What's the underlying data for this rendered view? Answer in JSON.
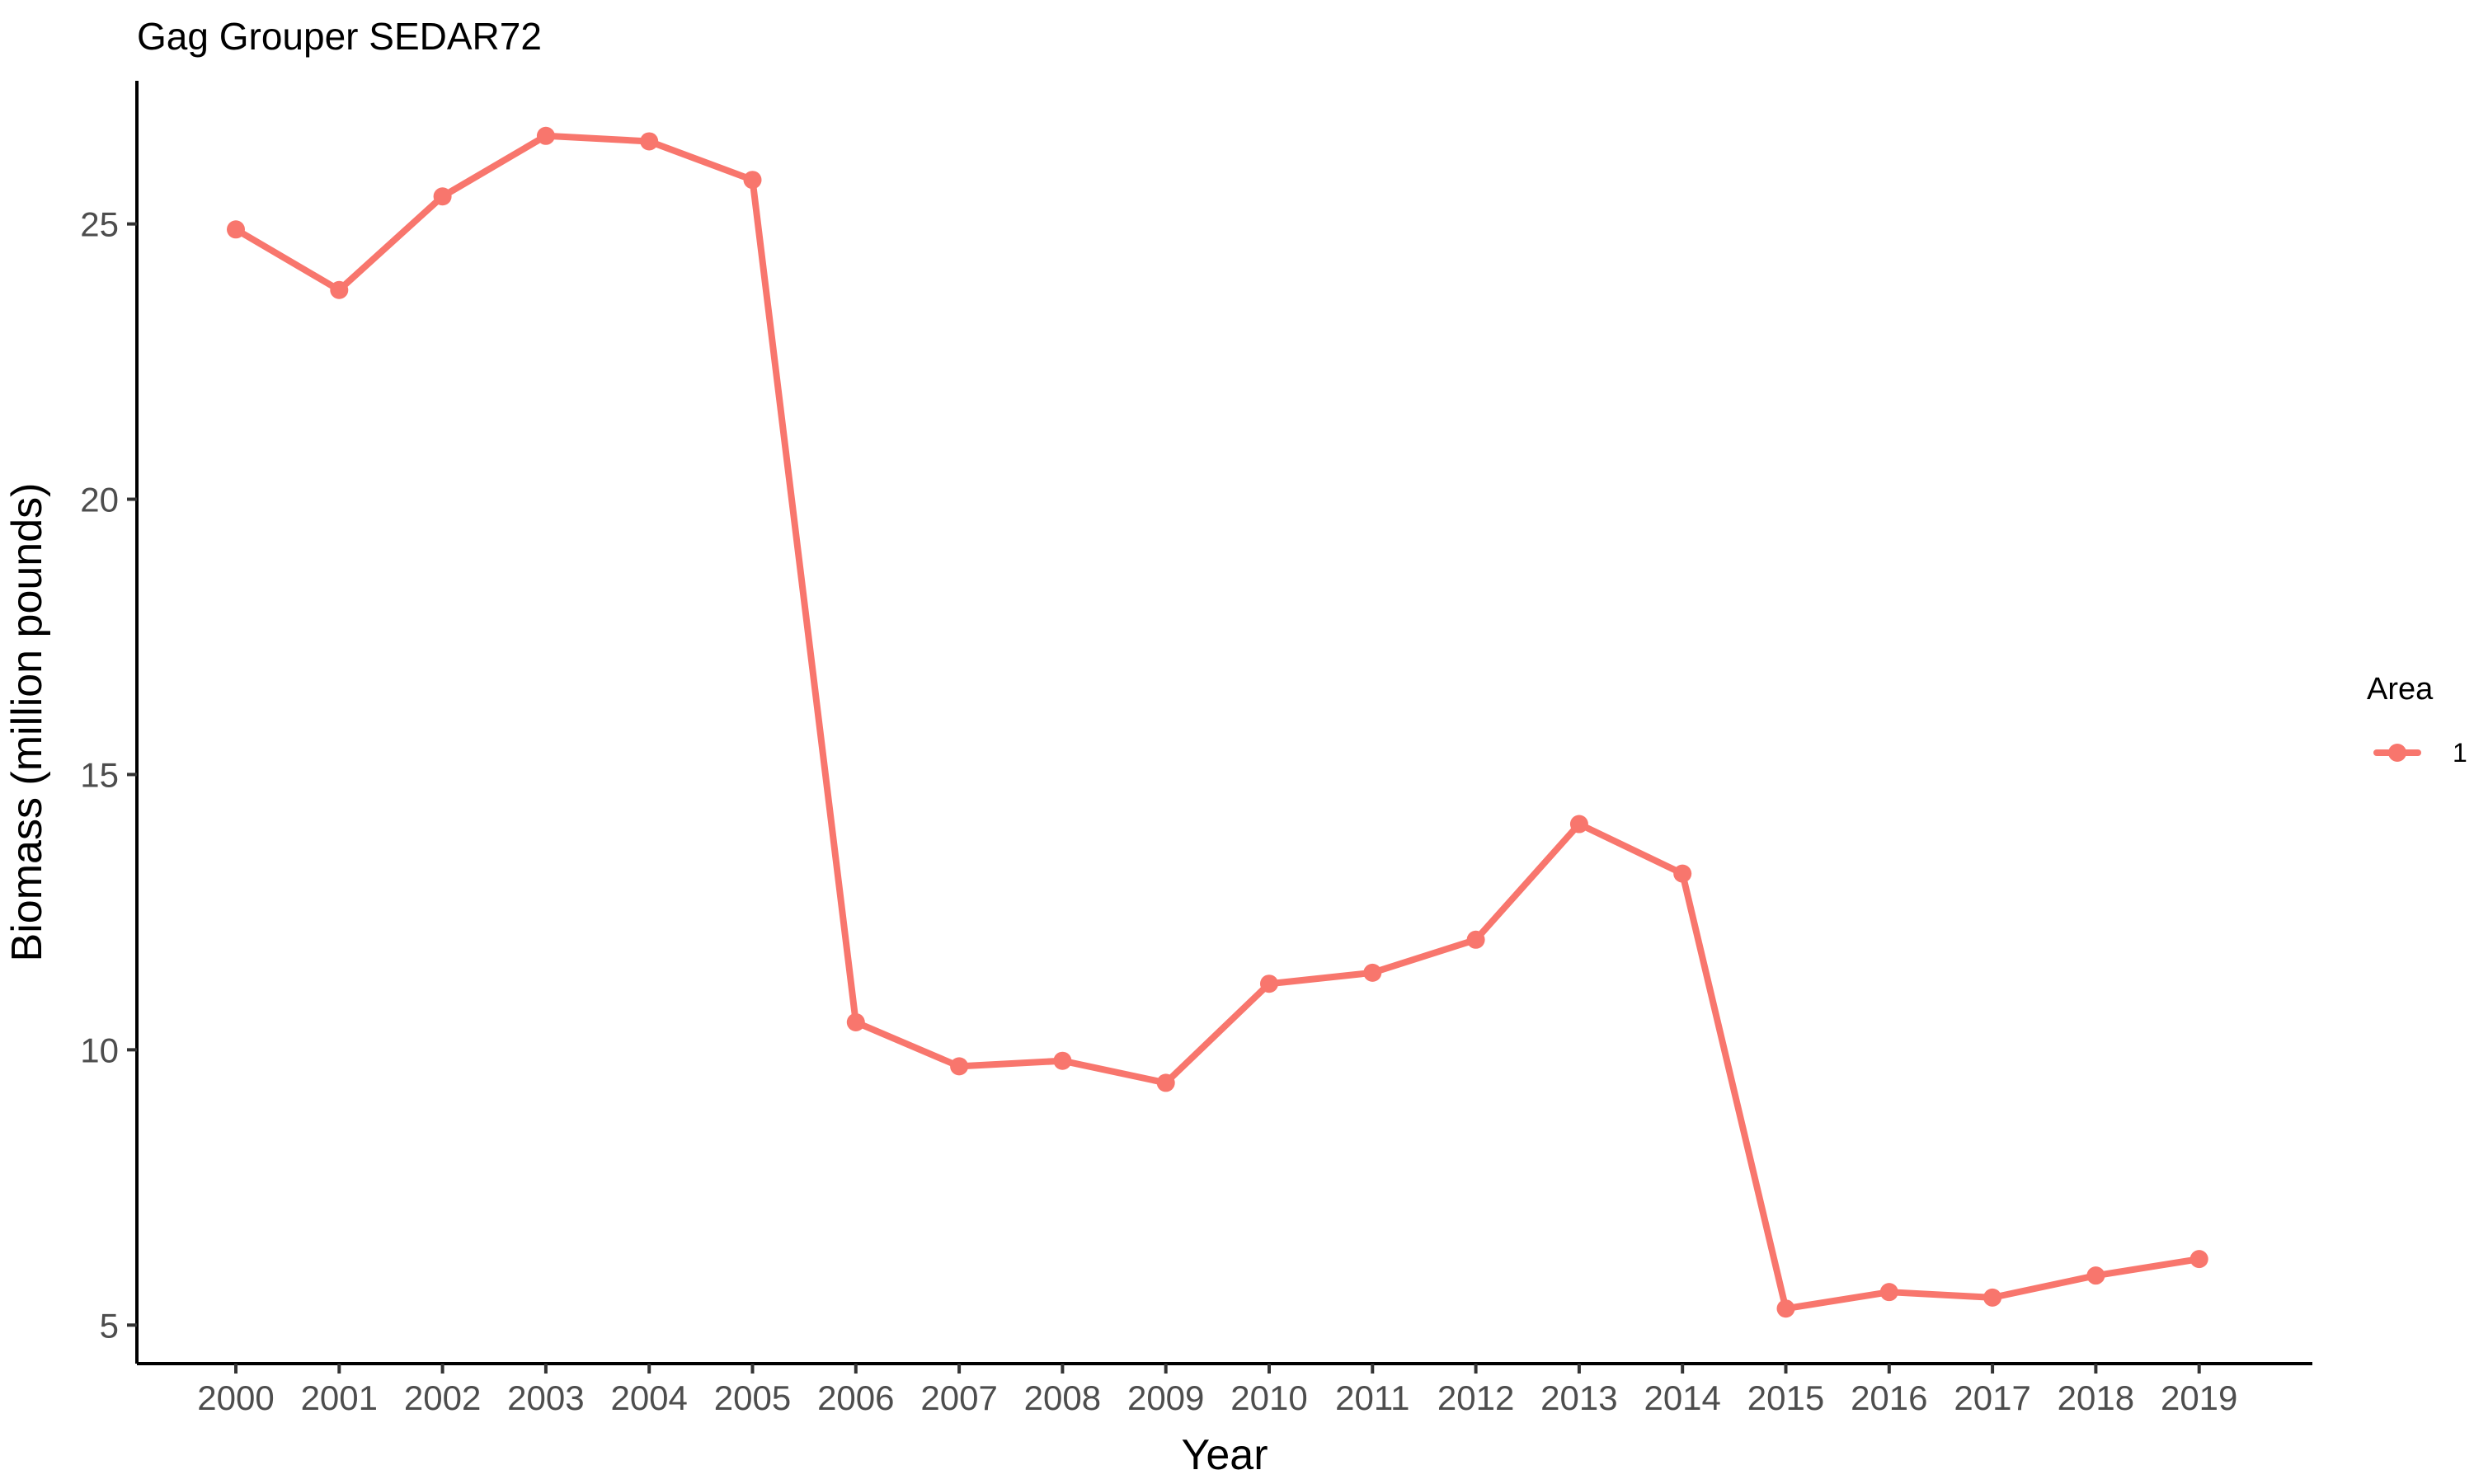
{
  "chart_data": {
    "type": "line",
    "title": "Gag Grouper SEDAR72",
    "xlabel": "Year",
    "ylabel": "Biomass (million pounds)",
    "x": [
      "2000",
      "2001",
      "2002",
      "2003",
      "2004",
      "2005",
      "2006",
      "2007",
      "2008",
      "2009",
      "2010",
      "2011",
      "2012",
      "2013",
      "2014",
      "2015",
      "2016",
      "2017",
      "2018",
      "2019"
    ],
    "series": [
      {
        "name": "1",
        "values": [
          24.9,
          23.8,
          25.5,
          26.6,
          26.5,
          25.8,
          10.5,
          9.7,
          9.8,
          9.4,
          11.2,
          11.4,
          12.0,
          14.1,
          13.2,
          5.3,
          5.6,
          5.5,
          5.9,
          6.2
        ]
      }
    ],
    "yticks": [
      5,
      10,
      15,
      20,
      25
    ],
    "ylim": [
      4.3,
      27.6
    ],
    "grid": false,
    "legend": {
      "title": "Area",
      "position": "right"
    },
    "colors": {
      "series": "#F8766D",
      "axis": "#000000",
      "tick_text": "#4d4d4d"
    }
  }
}
